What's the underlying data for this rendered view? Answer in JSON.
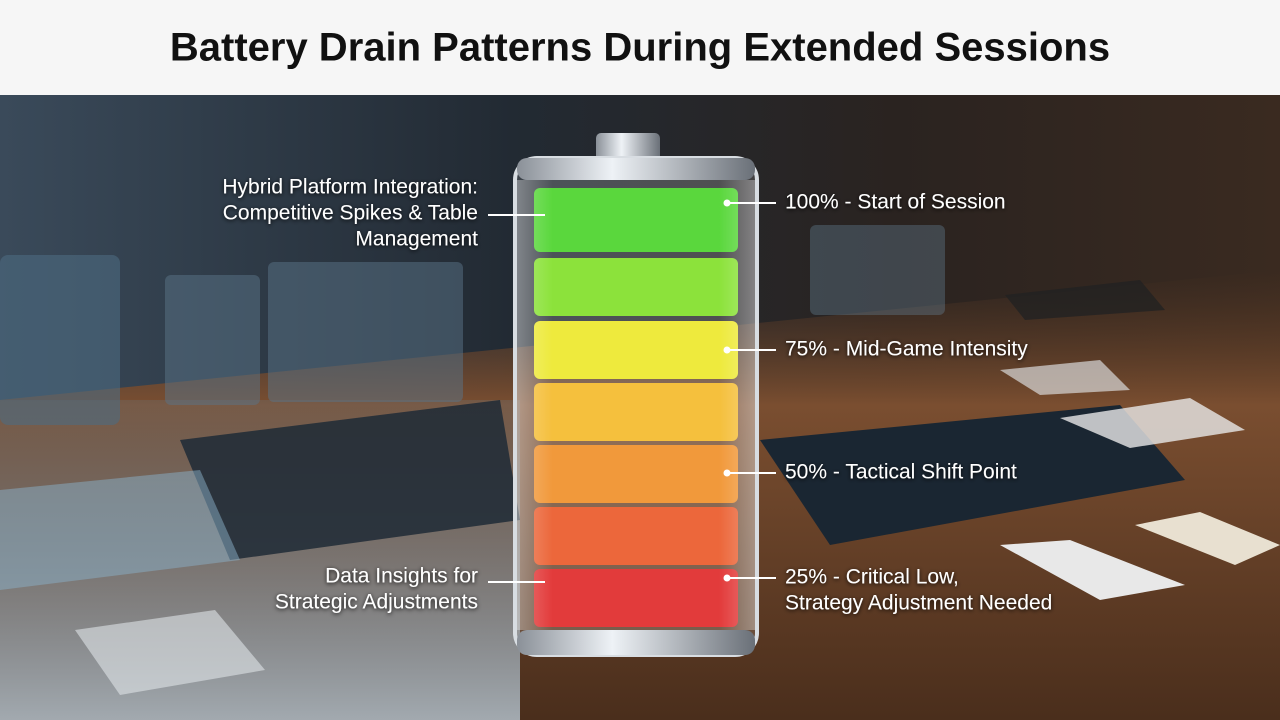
{
  "title": "Battery Drain Patterns During Extended Sessions",
  "left_labels": [
    {
      "lines": [
        "Hybrid Platform Integration:",
        "Competitive Spikes & Table",
        "Management"
      ]
    },
    {
      "lines": [
        "Data Insights for",
        "Strategic Adjustments"
      ]
    }
  ],
  "right_labels": [
    {
      "lines": [
        "100% - Start of Session"
      ]
    },
    {
      "lines": [
        "75% - Mid-Game Intensity"
      ]
    },
    {
      "lines": [
        "50% - Tactical Shift Point"
      ]
    },
    {
      "lines": [
        "25% - Critical Low,",
        "Strategy Adjustment Needed"
      ]
    }
  ]
}
